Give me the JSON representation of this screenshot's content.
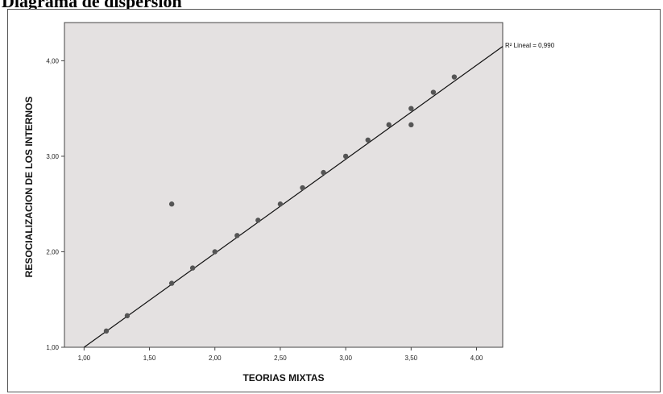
{
  "page_heading": "Diagrama de dispersión",
  "chart_data": {
    "type": "scatter",
    "xlabel": "TEORIAS MIXTAS",
    "ylabel": "RESOCIALIZACION DE LOS INTERNOS",
    "xlim": [
      0.85,
      4.2
    ],
    "ylim": [
      1.0,
      4.4
    ],
    "x_ticks": [
      "1,00",
      "1,50",
      "2,00",
      "2,50",
      "3,00",
      "3,50",
      "4,00"
    ],
    "x_tick_values": [
      1.0,
      1.5,
      2.0,
      2.5,
      3.0,
      3.5,
      4.0
    ],
    "y_ticks": [
      "1,00",
      "2,00",
      "3,00",
      "4,00"
    ],
    "y_tick_values": [
      1.0,
      2.0,
      3.0,
      4.0
    ],
    "grid": false,
    "colors": {
      "plot_bg": "#e4e1e1",
      "points": "#555555",
      "fit_line": "#111111"
    },
    "points": [
      {
        "x": 1.17,
        "y": 1.17
      },
      {
        "x": 1.33,
        "y": 1.33
      },
      {
        "x": 1.67,
        "y": 1.67
      },
      {
        "x": 1.67,
        "y": 2.5
      },
      {
        "x": 1.83,
        "y": 1.83
      },
      {
        "x": 2.0,
        "y": 2.0
      },
      {
        "x": 2.17,
        "y": 2.17
      },
      {
        "x": 2.33,
        "y": 2.33
      },
      {
        "x": 2.5,
        "y": 2.5
      },
      {
        "x": 2.67,
        "y": 2.67
      },
      {
        "x": 2.83,
        "y": 2.83
      },
      {
        "x": 3.0,
        "y": 3.0
      },
      {
        "x": 3.17,
        "y": 3.17
      },
      {
        "x": 3.33,
        "y": 3.33
      },
      {
        "x": 3.5,
        "y": 3.5
      },
      {
        "x": 3.5,
        "y": 3.33
      },
      {
        "x": 3.67,
        "y": 3.67
      },
      {
        "x": 3.83,
        "y": 3.83
      }
    ],
    "fit_line": {
      "x": [
        1.0,
        4.2
      ],
      "y": [
        1.0,
        4.15
      ]
    },
    "annotation": "R² Lineal = 0,990"
  }
}
